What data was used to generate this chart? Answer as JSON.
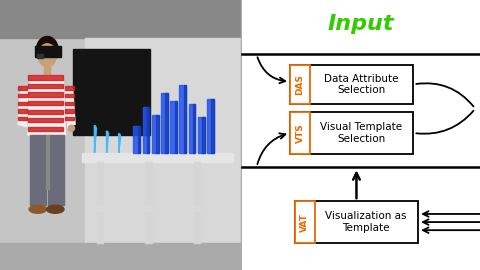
{
  "title": "Input",
  "title_color": "#33cc00",
  "title_fontsize": 16,
  "title_fontweight": "bold",
  "bg_color": "#ffffff",
  "das_label": "DAS",
  "das_text": "Data Attribute\nSelection",
  "vts_label": "VTS",
  "vts_text": "Visual Template\nSelection",
  "vat_label": "VAT",
  "vat_text": "Visualization as\nTemplate",
  "text_fontsize": 7.5,
  "label_fontsize": 6.5,
  "orange_color": "#e86a00",
  "photo_colors": {
    "ceiling": "#b0b0b0",
    "upper_wall": "#c8c8c8",
    "lower_wall": "#d8d8d8",
    "floor": "#b8b8b8",
    "blackboard": "#1a1a1a",
    "table_top": "#e8e8e8",
    "table_leg": "#d0d0d0",
    "shirt_white": "#f0f0f0",
    "shirt_red": "#cc2222",
    "pants": "#6b6b7a",
    "skin": "#c8a07a",
    "hair": "#2a1a0a",
    "shoes": "#8b5a2b",
    "blue_holo": "#2255ee"
  }
}
